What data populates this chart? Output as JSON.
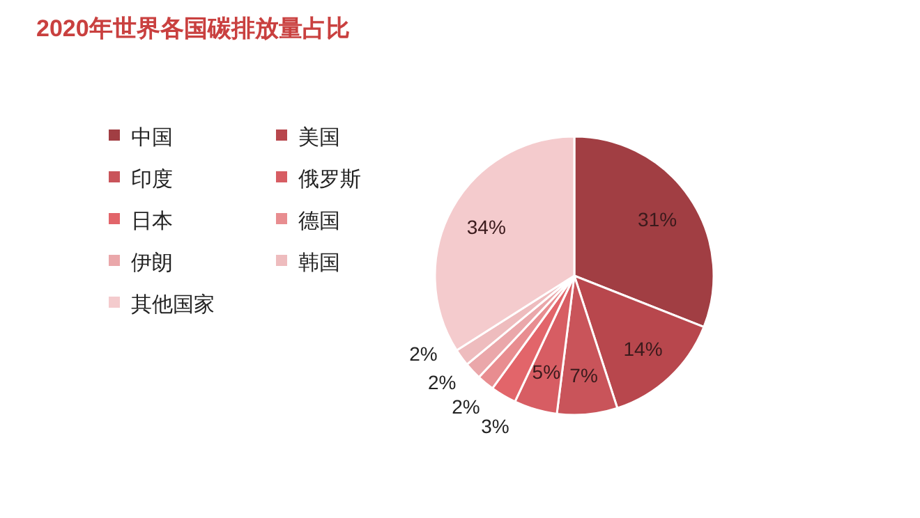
{
  "chart_data": {
    "type": "pie",
    "title": "2020年世界各国碳排放量占比",
    "categories": [
      "中国",
      "美国",
      "印度",
      "俄罗斯",
      "日本",
      "德国",
      "伊朗",
      "韩国",
      "其他国家"
    ],
    "values": [
      31,
      14,
      7,
      5,
      3,
      2,
      2,
      2,
      34
    ],
    "colors": [
      "#a13e43",
      "#b8474d",
      "#c9545a",
      "#d75d63",
      "#e2656a",
      "#e88d90",
      "#eaa7aa",
      "#eebcbe",
      "#f4cbcd"
    ],
    "value_labels": [
      "31%",
      "14%",
      "7%",
      "5%",
      "3%",
      "2%",
      "2%",
      "2%",
      "34%"
    ],
    "legend": "left"
  }
}
